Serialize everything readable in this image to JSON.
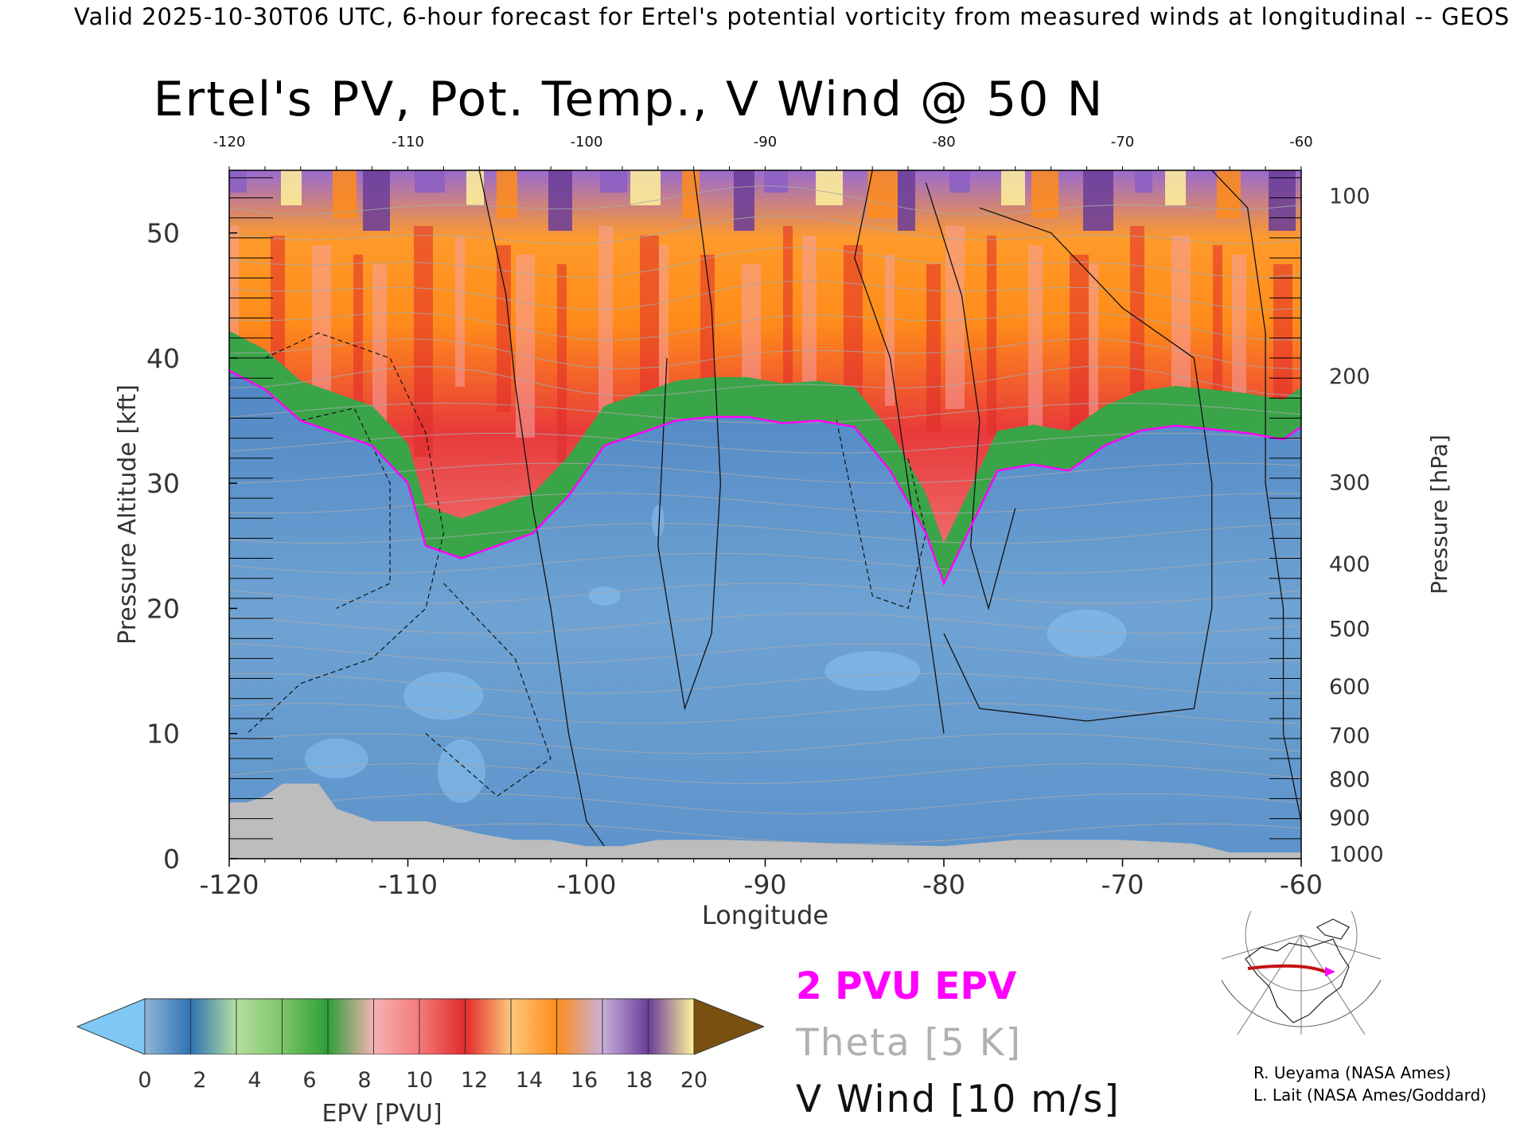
{
  "header": {
    "valid_line": "Valid 2025-10-30T06 UTC, 6-hour forecast for Ertel's potential vorticity from measured winds at longitudinal -- GEOS"
  },
  "chart_data": {
    "type": "heatmap",
    "title": "Ertel's PV, Pot. Temp., V Wind @ 50 N",
    "xlabel": "Longitude",
    "ylabel": "Pressure Altitude [kft]",
    "y2label": "Pressure [hPa]",
    "xlim": [
      -120,
      -60
    ],
    "ylim": [
      0,
      55
    ],
    "x_ticks": [
      "-120",
      "-110",
      "-100",
      "-90",
      "-80",
      "-70",
      "-60"
    ],
    "top_x_ticks": [
      "-120",
      "-110",
      "-100",
      "-90",
      "-80",
      "-70",
      "-60"
    ],
    "y_ticks": [
      "0",
      "10",
      "20",
      "30",
      "40",
      "50"
    ],
    "pressure_ticks": [
      {
        "label": "100",
        "kft": 53
      },
      {
        "label": "200",
        "kft": 38.6
      },
      {
        "label": "300",
        "kft": 30.1
      },
      {
        "label": "400",
        "kft": 23.6
      },
      {
        "label": "500",
        "kft": 18.4
      },
      {
        "label": "600",
        "kft": 13.8
      },
      {
        "label": "700",
        "kft": 9.9
      },
      {
        "label": "800",
        "kft": 6.4
      },
      {
        "label": "900",
        "kft": 3.3
      },
      {
        "label": "1000",
        "kft": 0.4
      }
    ],
    "tropopause_2pvu_kft": [
      [
        -120,
        39
      ],
      [
        -118,
        37.5
      ],
      [
        -116,
        35
      ],
      [
        -114,
        34
      ],
      [
        -112,
        33
      ],
      [
        -110,
        30
      ],
      [
        -109,
        25
      ],
      [
        -107,
        24
      ],
      [
        -105,
        25
      ],
      [
        -103,
        26
      ],
      [
        -101,
        29
      ],
      [
        -99,
        33
      ],
      [
        -97,
        34
      ],
      [
        -95,
        35
      ],
      [
        -93,
        35.3
      ],
      [
        -91,
        35.3
      ],
      [
        -89,
        34.8
      ],
      [
        -87,
        35
      ],
      [
        -85,
        34.5
      ],
      [
        -83,
        31
      ],
      [
        -81,
        26
      ],
      [
        -80,
        22
      ],
      [
        -79,
        25
      ],
      [
        -77,
        31
      ],
      [
        -75,
        31.5
      ],
      [
        -73,
        31
      ],
      [
        -71,
        33
      ],
      [
        -69,
        34.2
      ],
      [
        -67,
        34.6
      ],
      [
        -65,
        34.3
      ],
      [
        -63,
        34
      ],
      [
        -61,
        33.5
      ],
      [
        -60,
        34.5
      ]
    ],
    "surface_kft": [
      [
        -120,
        4.5
      ],
      [
        -119,
        4.5
      ],
      [
        -118,
        5
      ],
      [
        -117,
        6
      ],
      [
        -115,
        6
      ],
      [
        -114,
        4
      ],
      [
        -113,
        3.5
      ],
      [
        -112,
        3
      ],
      [
        -109,
        3
      ],
      [
        -106,
        2
      ],
      [
        -104,
        1.5
      ],
      [
        -102,
        1.5
      ],
      [
        -100,
        1
      ],
      [
        -98,
        1
      ],
      [
        -96,
        1.5
      ],
      [
        -92,
        1.5
      ],
      [
        -86,
        1.2
      ],
      [
        -80,
        1
      ],
      [
        -76,
        1.5
      ],
      [
        -70,
        1.5
      ],
      [
        -66,
        1.2
      ],
      [
        -64,
        0.5
      ],
      [
        -60,
        0.5
      ]
    ],
    "colorbar": {
      "label": "EPV [PVU]",
      "ticks": [
        "0",
        "2",
        "4",
        "6",
        "8",
        "10",
        "12",
        "14",
        "16",
        "18",
        "20"
      ],
      "colors": [
        "#7fc8f5",
        "#8fb6d6",
        "#2f73b3",
        "#b5dea0",
        "#7cc667",
        "#2e9e38",
        "#f5b3b3",
        "#f47a7a",
        "#e02a2a",
        "#fdc87a",
        "#ff8c1a",
        "#c8b0d8",
        "#6a3d9a",
        "#fff29a",
        "#7a5010"
      ]
    }
  },
  "legend": {
    "pv": "2 PVU EPV",
    "theta": "Theta [5 K]",
    "wind": "V Wind [10 m/s]"
  },
  "credits": {
    "line1": "R. Ueyama (NASA Ames)",
    "line2": "L. Lait (NASA Ames/Goddard)"
  }
}
